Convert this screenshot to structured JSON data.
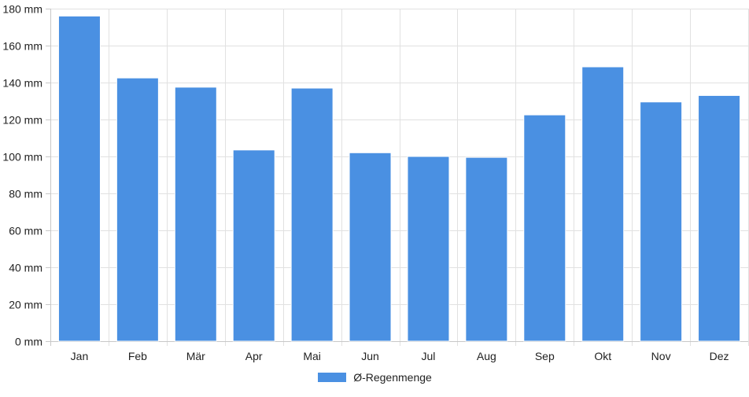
{
  "chart_data": {
    "type": "bar",
    "categories": [
      "Jan",
      "Feb",
      "Mär",
      "Apr",
      "Mai",
      "Jun",
      "Jul",
      "Aug",
      "Sep",
      "Okt",
      "Nov",
      "Dez"
    ],
    "series": [
      {
        "name": "Ø-Regenmenge",
        "values": [
          176,
          142.5,
          137.5,
          103.5,
          137,
          102,
          100,
          99.5,
          122.5,
          148.5,
          129.5,
          133
        ],
        "color": "#4a90e2"
      }
    ],
    "ylim": [
      0,
      180
    ],
    "yticks": [
      0,
      20,
      40,
      60,
      80,
      100,
      120,
      140,
      160,
      180
    ],
    "ytick_labels": [
      "0 mm",
      "20 mm",
      "40 mm",
      "60 mm",
      "80 mm",
      "100 mm",
      "120 mm",
      "140 mm",
      "160 mm",
      "180 mm"
    ],
    "grid": true,
    "legend_position": "bottom"
  }
}
